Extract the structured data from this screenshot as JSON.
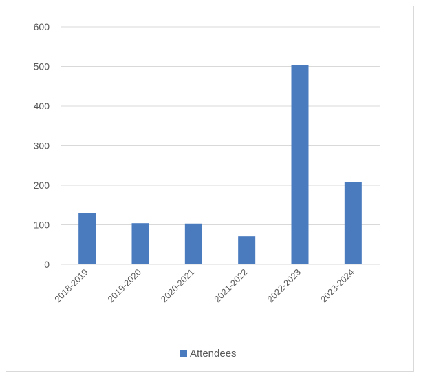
{
  "chart_data": {
    "type": "bar",
    "categories": [
      "2018-2019",
      "2019-2020",
      "2020-2021",
      "2021-2022",
      "2022-2023",
      "2023-2024"
    ],
    "series": [
      {
        "name": "Attendees",
        "values": [
          129,
          104,
          103,
          71,
          504,
          207
        ],
        "color": "#4a7bbf"
      }
    ],
    "ylim": [
      0,
      600
    ],
    "yticks": [
      0,
      100,
      200,
      300,
      400,
      500,
      600
    ],
    "title": "",
    "xlabel": "",
    "ylabel": "",
    "grid": true,
    "legend": "bottom",
    "gridColor": "#d9d9d9"
  }
}
